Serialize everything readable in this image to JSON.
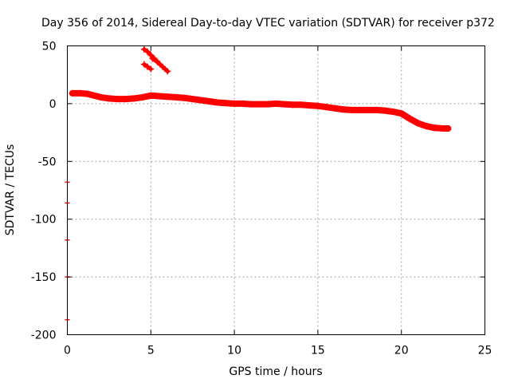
{
  "chart_data": {
    "type": "scatter",
    "title": "Day 356 of 2014, Sidereal Day-to-day VTEC variation (SDTVAR) for receiver p372",
    "xlabel": "GPS time / hours",
    "ylabel": "SDTVAR / TECUs",
    "xlim": [
      0,
      25
    ],
    "ylim": [
      -200,
      50
    ],
    "xticks": [
      0,
      5,
      10,
      15,
      20,
      25
    ],
    "yticks": [
      50,
      0,
      -50,
      -100,
      -150,
      -200
    ],
    "xtick_labels": [
      "0",
      "5",
      "10",
      "15",
      "20",
      "25"
    ],
    "ytick_labels": [
      "50",
      "0",
      "-50",
      "-100",
      "-150",
      "-200"
    ],
    "grid": true,
    "color": "#ff0000",
    "series": [
      {
        "name": "main-track",
        "points": [
          [
            0.3,
            9
          ],
          [
            0.8,
            9
          ],
          [
            1.2,
            8.5
          ],
          [
            1.6,
            7
          ],
          [
            2.0,
            5.5
          ],
          [
            2.5,
            4.5
          ],
          [
            3.0,
            4
          ],
          [
            3.5,
            4
          ],
          [
            4.0,
            4.5
          ],
          [
            4.5,
            5.5
          ],
          [
            5.0,
            7
          ],
          [
            5.5,
            6.5
          ],
          [
            6.0,
            6
          ],
          [
            6.5,
            5.5
          ],
          [
            7.0,
            5
          ],
          [
            7.5,
            4
          ],
          [
            8.0,
            3
          ],
          [
            8.5,
            2
          ],
          [
            9.0,
            1
          ],
          [
            9.5,
            0.5
          ],
          [
            10.0,
            0
          ],
          [
            10.5,
            0
          ],
          [
            11.0,
            -0.5
          ],
          [
            11.5,
            -0.5
          ],
          [
            12.0,
            -0.5
          ],
          [
            12.5,
            0
          ],
          [
            13.0,
            -0.5
          ],
          [
            13.5,
            -1
          ],
          [
            14.0,
            -1
          ],
          [
            14.5,
            -1.5
          ],
          [
            15.0,
            -2
          ],
          [
            15.5,
            -3
          ],
          [
            16.0,
            -4
          ],
          [
            16.5,
            -5
          ],
          [
            17.0,
            -5.5
          ],
          [
            17.5,
            -5.5
          ],
          [
            18.0,
            -5.5
          ],
          [
            18.5,
            -5.5
          ],
          [
            19.0,
            -6
          ],
          [
            19.5,
            -7
          ],
          [
            20.0,
            -8.5
          ],
          [
            20.5,
            -13
          ],
          [
            21.0,
            -17
          ],
          [
            21.5,
            -19.5
          ],
          [
            22.0,
            -21
          ],
          [
            22.5,
            -21.5
          ],
          [
            22.8,
            -21.5
          ]
        ]
      },
      {
        "name": "upper-segment-1",
        "points": [
          [
            4.6,
            47
          ],
          [
            4.8,
            45
          ],
          [
            5.0,
            42
          ],
          [
            5.2,
            39
          ],
          [
            5.35,
            37
          ]
        ]
      },
      {
        "name": "upper-segment-2",
        "points": [
          [
            5.1,
            39
          ],
          [
            5.4,
            36
          ],
          [
            5.7,
            32
          ],
          [
            6.0,
            28
          ]
        ]
      },
      {
        "name": "upper-segment-3",
        "points": [
          [
            4.6,
            34
          ],
          [
            4.8,
            32
          ],
          [
            5.0,
            30
          ]
        ]
      }
    ],
    "outliers": [
      [
        0,
        -68
      ],
      [
        0,
        -86
      ],
      [
        0,
        -118
      ],
      [
        0,
        -150
      ],
      [
        0,
        -187
      ]
    ]
  }
}
